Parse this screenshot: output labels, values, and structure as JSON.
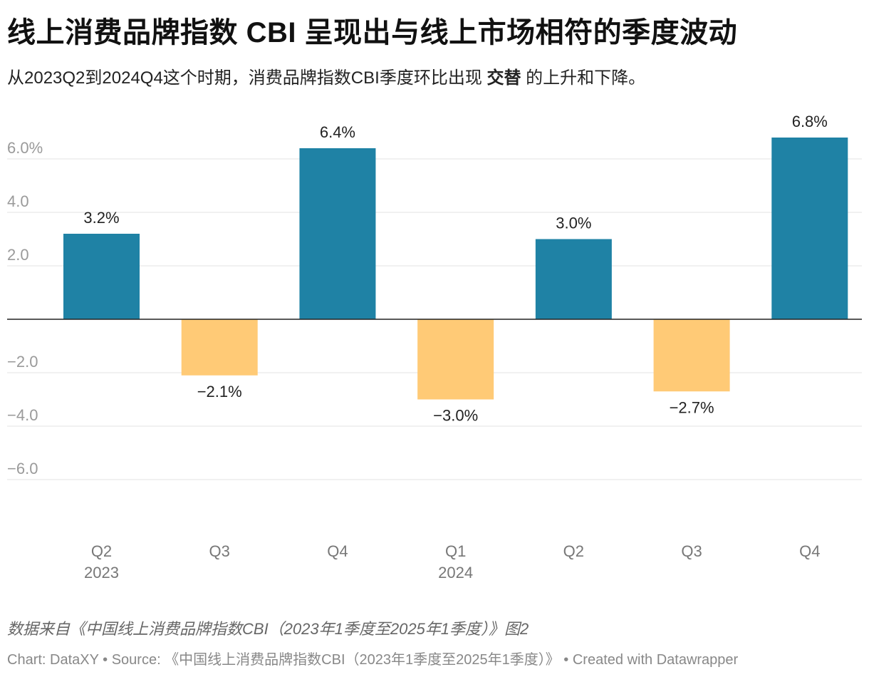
{
  "header": {
    "title": "线上消费品牌指数 CBI 呈现出与线上市场相符的季度波动",
    "subtitle_pre": "从2023Q2到2024Q4这个时期，消费品牌指数CBI季度环比出现 ",
    "subtitle_bold": "交替",
    "subtitle_post": " 的上升和下降。"
  },
  "chart_data": {
    "type": "bar",
    "categories": [
      "Q2",
      "Q3",
      "Q4",
      "Q1",
      "Q2",
      "Q3",
      "Q4"
    ],
    "year_labels": [
      "2023",
      "",
      "",
      "2024",
      "",
      "",
      ""
    ],
    "values": [
      3.2,
      -2.1,
      6.4,
      -3.0,
      3.0,
      -2.7,
      6.8
    ],
    "value_labels": [
      "3.2%",
      "−2.1%",
      "6.4%",
      "−3.0%",
      "3.0%",
      "−2.7%",
      "6.8%"
    ],
    "yticks": [
      6,
      4,
      2,
      -2,
      -4,
      -6
    ],
    "ytick_labels": [
      "6.0%",
      "4.0",
      "2.0",
      "−2.0",
      "−4.0",
      "−6.0"
    ],
    "ylim": [
      -7,
      7
    ],
    "positive_color": "#1f82a5",
    "negative_color": "#ffca76",
    "grid": true
  },
  "footer": {
    "notes": "数据来自《中国线上消费品牌指数CBI（2023年1季度至2025年1季度）》图2",
    "credit": "Chart: DataXY • Source: 《中国线上消费品牌指数CBI（2023年1季度至2025年1季度）》 • Created with Datawrapper"
  }
}
